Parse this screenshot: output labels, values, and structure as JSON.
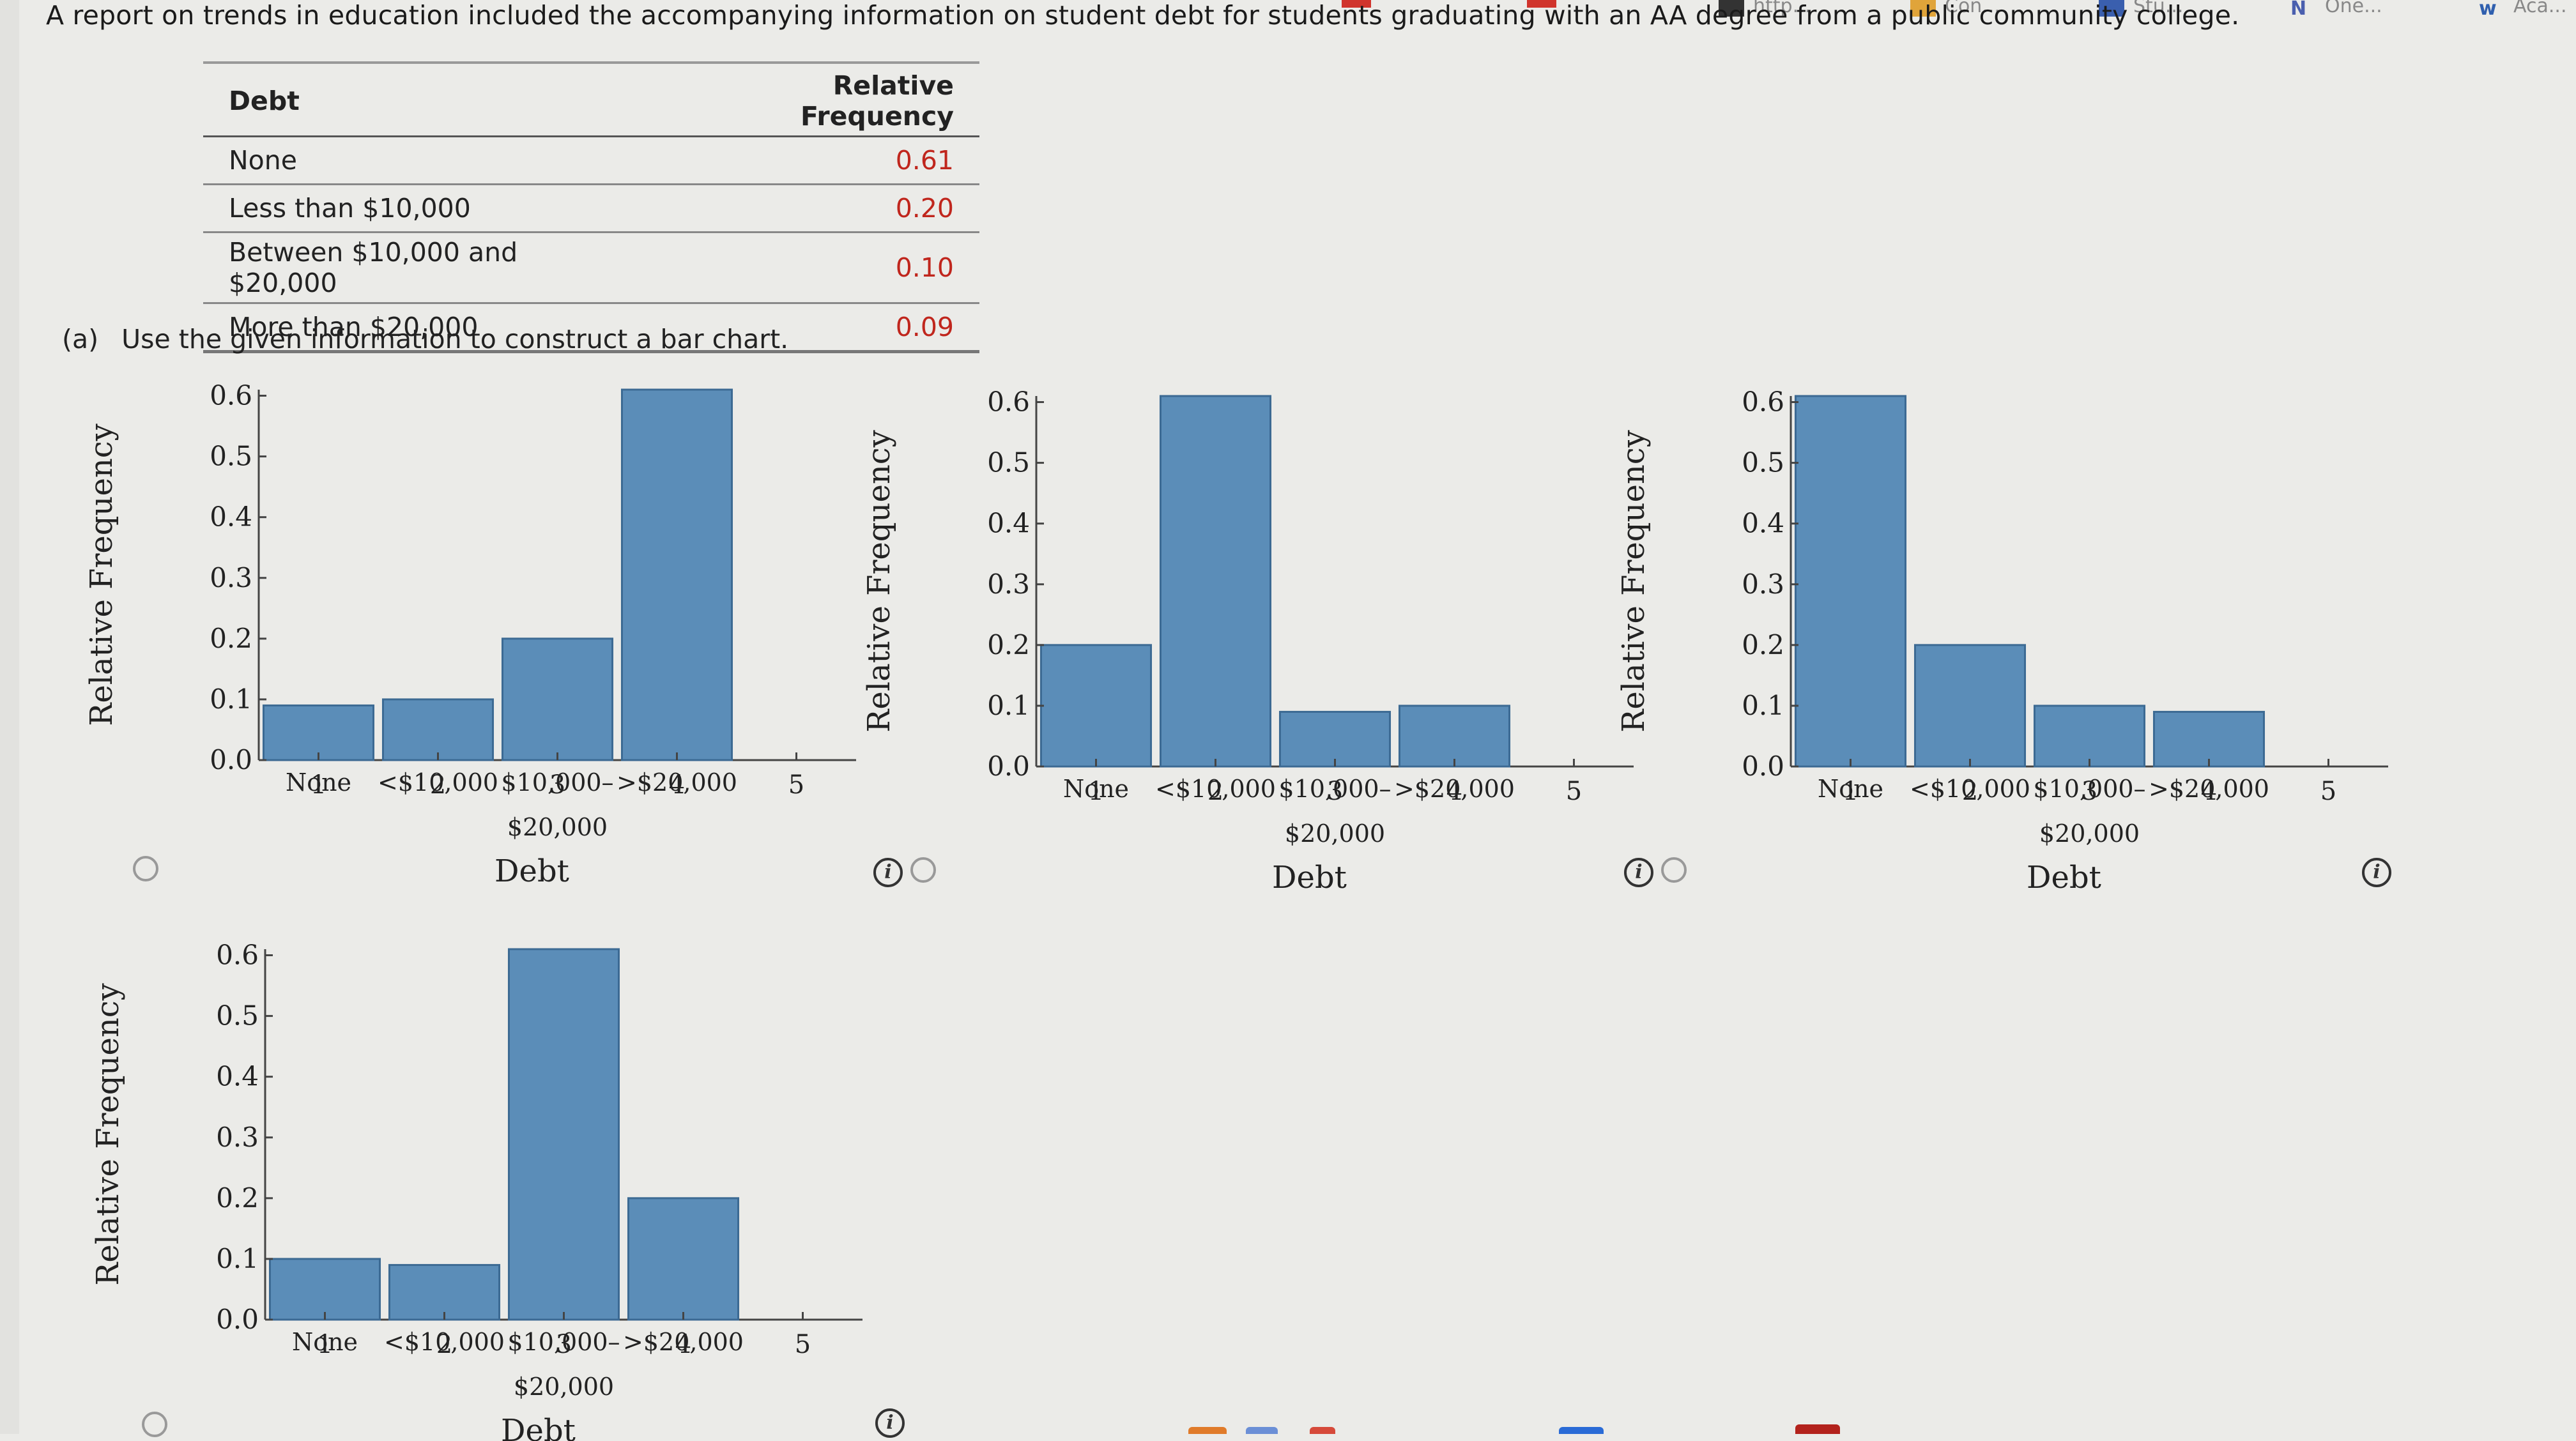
{
  "intro_text": "A report on trends in education included the accompanying information on student debt for students graduating with an AA degree from a public community college.",
  "bookmarks": [
    "http...",
    "Con...",
    "Stu...",
    "One...",
    "Aca..."
  ],
  "colors": {
    "bar": "#5b8db8",
    "bar_edge": "#3c6a93",
    "value_red": "#c0261d",
    "accent_red": "#d0342c"
  },
  "table": {
    "headers": [
      "Debt",
      "Relative Frequency"
    ],
    "rows": [
      {
        "label": "None",
        "value": "0.61"
      },
      {
        "label": "Less than $10,000",
        "value": "0.20"
      },
      {
        "label": "Between $10,000 and $20,000",
        "value": "0.10"
      },
      {
        "label": "More than $20,000",
        "value": "0.09"
      }
    ]
  },
  "part_a": {
    "label": "(a)",
    "text": "Use the given information to construct a bar chart."
  },
  "chart_data": [
    {
      "type": "bar",
      "categories": [
        "None",
        "<$10,000",
        "$10,000– $20,000",
        ">$20,000"
      ],
      "values": [
        0.09,
        0.1,
        0.2,
        0.61
      ],
      "xlabel": "Debt",
      "ylabel": "Relative Frequency",
      "yticks": [
        "0.0",
        "0.1",
        "0.2",
        "0.3",
        "0.4",
        "0.5",
        "0.6"
      ],
      "xticks": [
        "1",
        "2",
        "3",
        "4",
        "5"
      ],
      "ylim": [
        0,
        0.61
      ],
      "xlim": [
        0.5,
        5.5
      ],
      "grid": false
    },
    {
      "type": "bar",
      "categories": [
        "None",
        "<$10,000",
        "$10,000– $20,000",
        ">$20,000"
      ],
      "values": [
        0.2,
        0.61,
        0.09,
        0.1
      ],
      "xlabel": "Debt",
      "ylabel": "Relative Frequency",
      "yticks": [
        "0.0",
        "0.1",
        "0.2",
        "0.3",
        "0.4",
        "0.5",
        "0.6"
      ],
      "xticks": [
        "1",
        "2",
        "3",
        "4",
        "5"
      ],
      "ylim": [
        0,
        0.61
      ],
      "xlim": [
        0.5,
        5.5
      ],
      "grid": false
    },
    {
      "type": "bar",
      "categories": [
        "None",
        "<$10,000",
        "$10,000– $20,000",
        ">$20,000"
      ],
      "values": [
        0.61,
        0.2,
        0.1,
        0.09
      ],
      "xlabel": "Debt",
      "ylabel": "Relative Frequency",
      "yticks": [
        "0.0",
        "0.1",
        "0.2",
        "0.3",
        "0.4",
        "0.5",
        "0.6"
      ],
      "xticks": [
        "1",
        "2",
        "3",
        "4",
        "5"
      ],
      "ylim": [
        0,
        0.61
      ],
      "xlim": [
        0.5,
        5.5
      ],
      "grid": false
    },
    {
      "type": "bar",
      "categories": [
        "None",
        "<$10,000",
        "$10,000– $20,000",
        ">$20,000"
      ],
      "values": [
        0.1,
        0.09,
        0.61,
        0.2
      ],
      "xlabel": "Debt",
      "ylabel": "Relative Frequency",
      "yticks": [
        "0.0",
        "0.1",
        "0.2",
        "0.3",
        "0.4",
        "0.5",
        "0.6"
      ],
      "xticks": [
        "1",
        "2",
        "3",
        "4",
        "5"
      ],
      "ylim": [
        0,
        0.61
      ],
      "xlim": [
        0.5,
        5.5
      ],
      "grid": false
    }
  ]
}
